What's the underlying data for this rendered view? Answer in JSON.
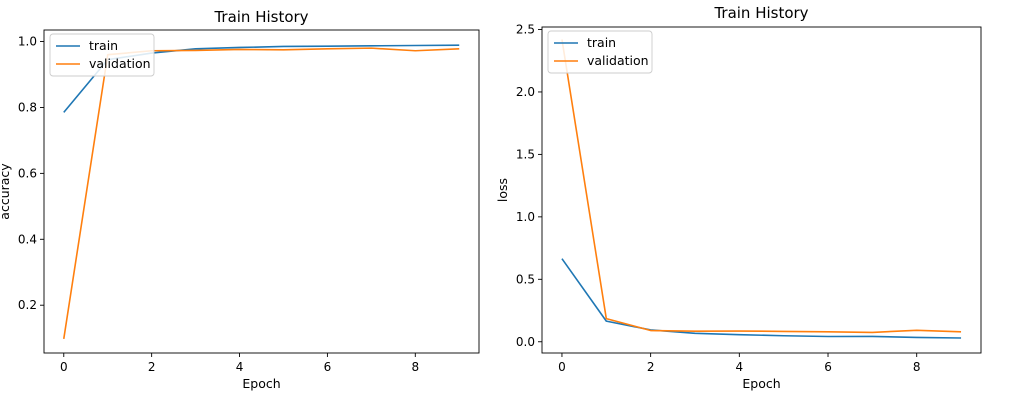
{
  "chart_data": [
    {
      "type": "line",
      "title": "Train History",
      "xlabel": "Epoch",
      "ylabel": "accuracy",
      "xlim": [
        -0.45,
        9.45
      ],
      "ylim": [
        0.055,
        1.035
      ],
      "xticks": [
        0,
        2,
        4,
        6,
        8
      ],
      "xtick_labels": [
        "0",
        "2",
        "4",
        "6",
        "8"
      ],
      "yticks": [
        0.2,
        0.4,
        0.6,
        0.8,
        1.0
      ],
      "ytick_labels": [
        "0.2",
        "0.4",
        "0.6",
        "0.8",
        "1.0"
      ],
      "grid": false,
      "legend_location": "upper-left",
      "x": [
        0,
        1,
        2,
        3,
        4,
        5,
        6,
        7,
        8,
        9
      ],
      "series": [
        {
          "name": "train",
          "color": "#1f77b4",
          "values": [
            0.785,
            0.945,
            0.965,
            0.978,
            0.982,
            0.985,
            0.986,
            0.987,
            0.988,
            0.989
          ]
        },
        {
          "name": "validation",
          "color": "#ff7f0e",
          "values": [
            0.098,
            0.96,
            0.972,
            0.973,
            0.976,
            0.975,
            0.978,
            0.98,
            0.972,
            0.978
          ]
        }
      ]
    },
    {
      "type": "line",
      "title": "Train History",
      "xlabel": "Epoch",
      "ylabel": "loss",
      "xlim": [
        -0.45,
        9.45
      ],
      "ylim": [
        -0.09,
        2.52
      ],
      "xticks": [
        0,
        2,
        4,
        6,
        8
      ],
      "xtick_labels": [
        "0",
        "2",
        "4",
        "6",
        "8"
      ],
      "yticks": [
        0.0,
        0.5,
        1.0,
        1.5,
        2.0,
        2.5
      ],
      "ytick_labels": [
        "0.0",
        "0.5",
        "1.0",
        "1.5",
        "2.0",
        "2.5"
      ],
      "grid": false,
      "legend_location": "upper-left",
      "x": [
        0,
        1,
        2,
        3,
        4,
        5,
        6,
        7,
        8,
        9
      ],
      "series": [
        {
          "name": "train",
          "color": "#1f77b4",
          "values": [
            0.665,
            0.165,
            0.095,
            0.068,
            0.057,
            0.048,
            0.042,
            0.043,
            0.035,
            0.03
          ]
        },
        {
          "name": "validation",
          "color": "#ff7f0e",
          "values": [
            2.42,
            0.185,
            0.09,
            0.085,
            0.086,
            0.083,
            0.08,
            0.075,
            0.092,
            0.08
          ]
        }
      ]
    }
  ]
}
